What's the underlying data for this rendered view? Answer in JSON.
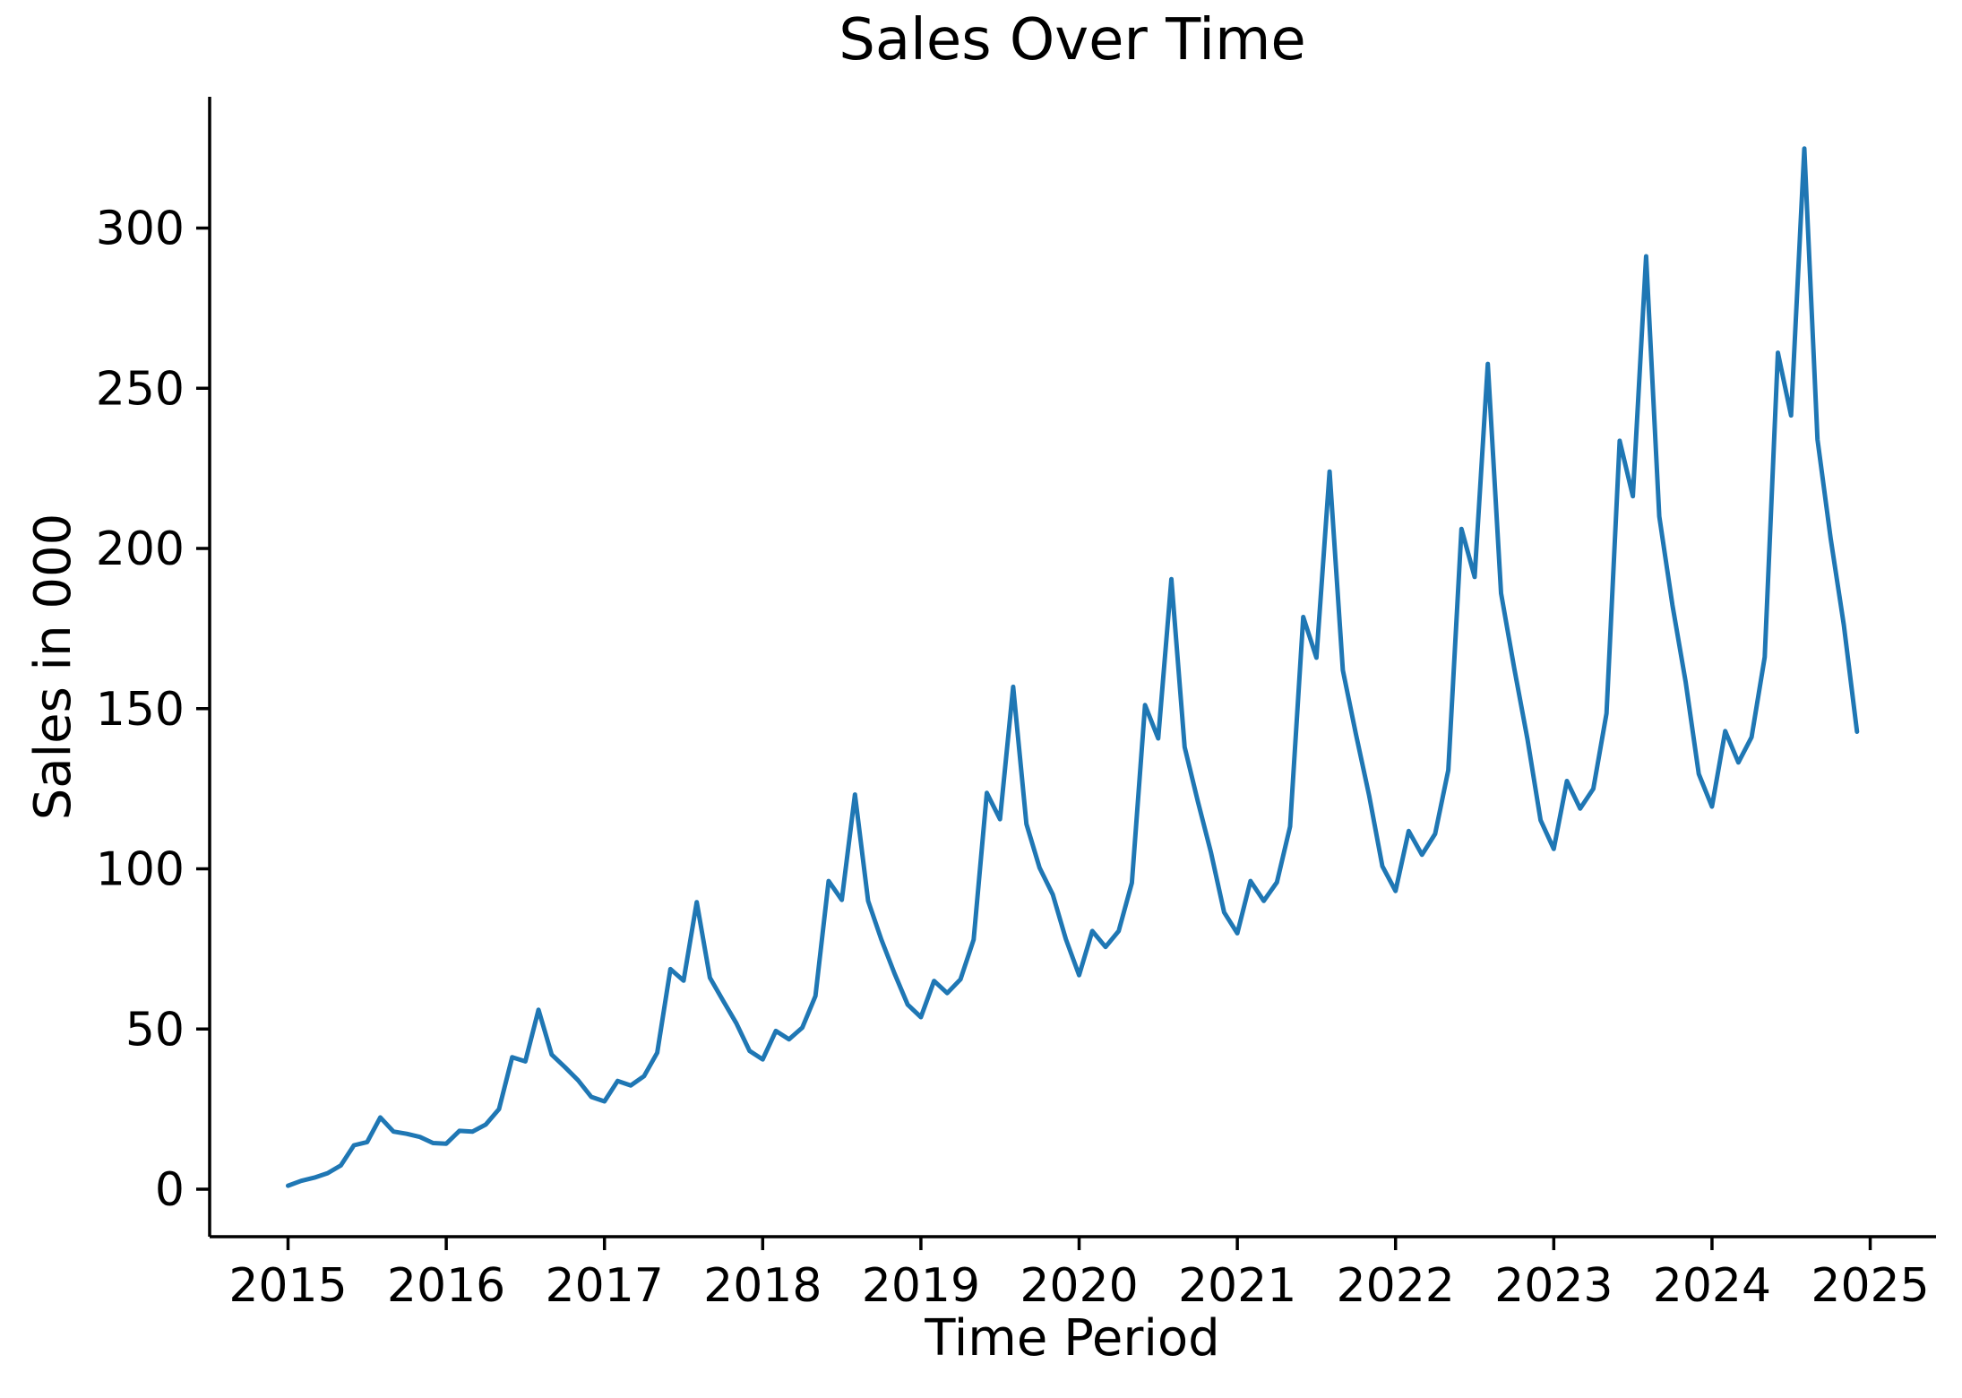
{
  "chart_data": {
    "type": "line",
    "title": "Sales Over Time",
    "xlabel": "Time Period",
    "ylabel": "Sales in 000",
    "x_tick_labels": [
      "2015",
      "2016",
      "2017",
      "2018",
      "2019",
      "2020",
      "2021",
      "2022",
      "2023",
      "2024",
      "2025"
    ],
    "y_tick_values": [
      0,
      50,
      100,
      150,
      200,
      250,
      300
    ],
    "ylim": [
      -15,
      341
    ],
    "grid": "off",
    "legend": "none",
    "line_color": "#1f77b4",
    "background_color": "#ffffff",
    "series": [
      {
        "name": "Sales",
        "start": "2015-01",
        "interval": "monthly",
        "values": [
          1.1,
          2.6,
          3.6,
          5.0,
          7.4,
          13.7,
          14.7,
          22.4,
          18.0,
          17.3,
          16.3,
          14.4,
          14.2,
          18.2,
          18.0,
          20.2,
          25.0,
          41.2,
          39.9,
          56.0,
          42.0,
          38.1,
          34.0,
          28.8,
          27.4,
          33.8,
          32.4,
          35.3,
          42.6,
          68.7,
          65.1,
          89.6,
          66.0,
          58.8,
          51.8,
          43.2,
          40.5,
          49.4,
          46.8,
          50.4,
          60.3,
          96.2,
          90.3,
          123.2,
          90.0,
          77.9,
          67.3,
          57.6,
          53.7,
          65.0,
          61.2,
          65.5,
          77.9,
          123.7,
          115.5,
          156.8,
          114.0,
          100.3,
          92.0,
          78.0,
          66.8,
          80.6,
          75.6,
          80.6,
          95.6,
          151.1,
          140.7,
          190.4,
          138.0,
          121.1,
          105.1,
          86.4,
          79.9,
          96.2,
          90.0,
          95.8,
          113.2,
          178.6,
          165.9,
          224.0,
          162.0,
          141.9,
          122.8,
          100.8,
          93.1,
          111.8,
          104.4,
          110.9,
          130.8,
          206.1,
          191.1,
          257.6,
          186.0,
          162.6,
          140.6,
          115.2,
          106.2,
          127.4,
          118.8,
          125.0,
          148.5,
          233.6,
          216.3,
          291.2,
          210.0,
          182.3,
          158.4,
          129.6,
          119.4,
          143.0,
          133.2,
          141.1,
          166.1,
          261.1,
          241.5,
          324.8,
          234.0,
          203.1,
          176.1,
          142.8
        ]
      }
    ]
  }
}
